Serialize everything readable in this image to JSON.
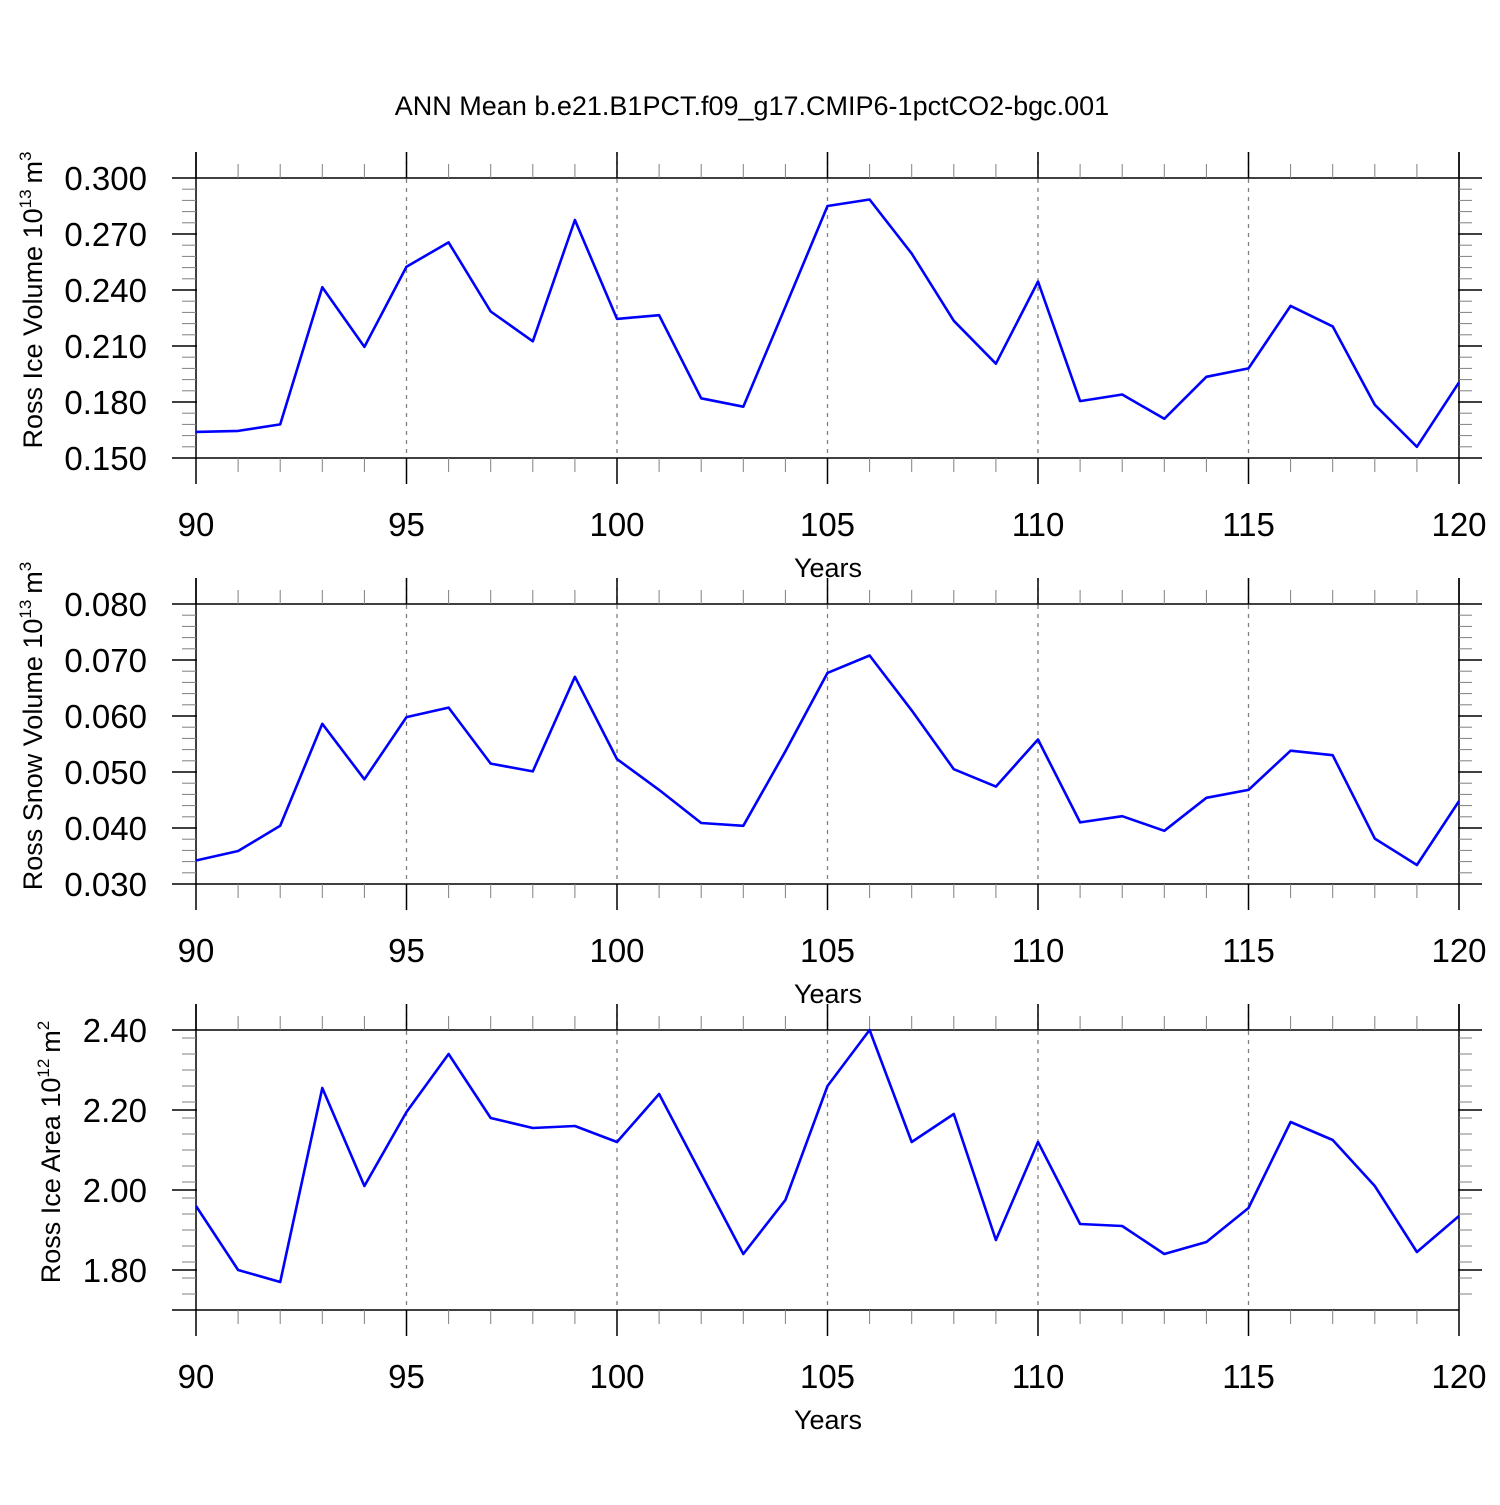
{
  "title": "ANN Mean b.e21.B1PCT.f09_g17.CMIP6-1pctCO2-bgc.001",
  "colors": {
    "line": "#0000ff",
    "axis": "#000000",
    "grid": "#808080"
  },
  "chart_data": [
    {
      "type": "line",
      "name": "ice-volume",
      "ylabel_main": "Ross Ice Volume 10",
      "ylabel_sup": "13",
      "ylabel_unit": "m",
      "ylabel_unit_sup": "3",
      "xlabel": "Years",
      "xlim": [
        90,
        120
      ],
      "ylim": [
        0.15,
        0.3
      ],
      "yticks": [
        0.15,
        0.18,
        0.21,
        0.24,
        0.27,
        0.3
      ],
      "ytick_labels": [
        "0.150",
        "0.180",
        "0.210",
        "0.240",
        "0.270",
        "0.300"
      ],
      "xticks": [
        90,
        95,
        100,
        105,
        110,
        115,
        120
      ],
      "xtick_labels": [
        "90",
        "95",
        "100",
        "105",
        "110",
        "115",
        "120"
      ],
      "grid": "vertical-dashed",
      "x": [
        90,
        91,
        92,
        93,
        94,
        95,
        96,
        97,
        98,
        99,
        100,
        101,
        102,
        103,
        104,
        105,
        106,
        107,
        108,
        109,
        110,
        111,
        112,
        113,
        114,
        115,
        116,
        117,
        118,
        119,
        120
      ],
      "values": [
        0.164,
        0.1645,
        0.168,
        0.2415,
        0.2095,
        0.2525,
        0.2655,
        0.2285,
        0.2125,
        0.2775,
        0.2245,
        0.2265,
        0.182,
        0.1775,
        0.231,
        0.285,
        0.2885,
        0.2595,
        0.2235,
        0.2005,
        0.2445,
        0.1805,
        0.184,
        0.171,
        0.1935,
        0.198,
        0.2315,
        0.2205,
        0.1785,
        0.156,
        0.1905
      ]
    },
    {
      "type": "line",
      "name": "snow-volume",
      "ylabel_main": "Ross Snow Volume 10",
      "ylabel_sup": "13",
      "ylabel_unit": "m",
      "ylabel_unit_sup": "3",
      "xlabel": "Years",
      "xlim": [
        90,
        120
      ],
      "ylim": [
        0.03,
        0.08
      ],
      "yticks": [
        0.03,
        0.04,
        0.05,
        0.06,
        0.07,
        0.08
      ],
      "ytick_labels": [
        "0.030",
        "0.040",
        "0.050",
        "0.060",
        "0.070",
        "0.080"
      ],
      "xticks": [
        90,
        95,
        100,
        105,
        110,
        115,
        120
      ],
      "xtick_labels": [
        "90",
        "95",
        "100",
        "105",
        "110",
        "115",
        "120"
      ],
      "grid": "vertical-dashed",
      "x": [
        90,
        91,
        92,
        93,
        94,
        95,
        96,
        97,
        98,
        99,
        100,
        101,
        102,
        103,
        104,
        105,
        106,
        107,
        108,
        109,
        110,
        111,
        112,
        113,
        114,
        115,
        116,
        117,
        118,
        119,
        120
      ],
      "values": [
        0.0342,
        0.0359,
        0.0404,
        0.0586,
        0.0487,
        0.0598,
        0.0615,
        0.0515,
        0.0501,
        0.067,
        0.0523,
        0.0468,
        0.0409,
        0.0404,
        0.0537,
        0.0677,
        0.0708,
        0.061,
        0.0505,
        0.0474,
        0.0558,
        0.041,
        0.0421,
        0.0395,
        0.0454,
        0.0468,
        0.0538,
        0.053,
        0.0381,
        0.0334,
        0.0448
      ]
    },
    {
      "type": "line",
      "name": "ice-area",
      "ylabel_main": "Ross Ice Area 10",
      "ylabel_sup": "12",
      "ylabel_unit": "m",
      "ylabel_unit_sup": "2",
      "xlabel": "Years",
      "xlim": [
        90,
        120
      ],
      "ylim": [
        1.7,
        2.4
      ],
      "yticks": [
        1.8,
        2.0,
        2.2,
        2.4
      ],
      "ytick_labels": [
        "1.80",
        "2.00",
        "2.20",
        "2.40"
      ],
      "xticks": [
        90,
        95,
        100,
        105,
        110,
        115,
        120
      ],
      "xtick_labels": [
        "90",
        "95",
        "100",
        "105",
        "110",
        "115",
        "120"
      ],
      "grid": "vertical-dashed",
      "x": [
        90,
        91,
        92,
        93,
        94,
        95,
        96,
        97,
        98,
        99,
        100,
        101,
        102,
        103,
        104,
        105,
        106,
        107,
        108,
        109,
        110,
        111,
        112,
        113,
        114,
        115,
        116,
        117,
        118,
        119,
        120
      ],
      "values": [
        1.96,
        1.8,
        1.77,
        2.255,
        2.01,
        2.195,
        2.34,
        2.18,
        2.155,
        2.16,
        2.12,
        2.24,
        2.04,
        1.84,
        1.975,
        2.26,
        2.4,
        2.12,
        2.19,
        1.875,
        2.12,
        1.915,
        1.91,
        1.84,
        1.87,
        1.955,
        2.17,
        2.125,
        2.01,
        1.845,
        1.935
      ]
    }
  ]
}
